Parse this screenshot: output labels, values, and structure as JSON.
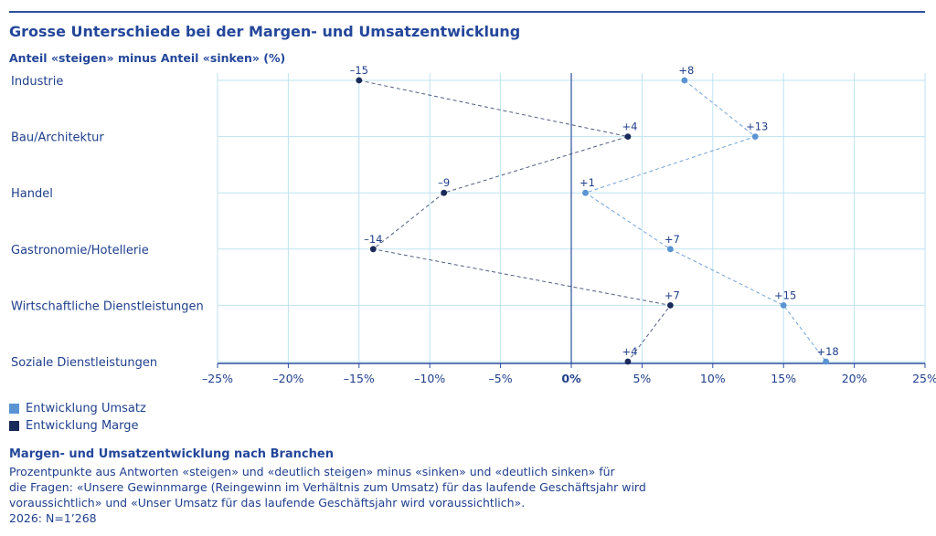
{
  "header": {
    "title": "Grosse Unterschiede bei der Margen- und Umsatzentwicklung",
    "subtitle": "Anteil «steigen» minus Anteil «sinken» (%)"
  },
  "legend": {
    "umsatz": "Entwicklung Umsatz",
    "marge": "Entwicklung Marge"
  },
  "footnote": {
    "title": "Margen- und Umsatzentwicklung nach Branchen",
    "lines": [
      "Prozentpunkte aus Antworten «steigen» und «deutlich steigen» minus «sinken» und «deutlich sinken» für",
      "die Fragen: «Unsere Gewinnmarge (Reingewinn im Verhältnis zum Umsatz) für das laufende Geschäftsjahr wird",
      "voraussichtlich» und «Unser Umsatz für das laufende Geschäftsjahr wird voraussichtlich».",
      "2026: N=1’268"
    ]
  },
  "colors": {
    "umsatz": "#5b94d3",
    "marge": "#1a2a5a",
    "grid": "#bfe3f2",
    "axis": "#2d4f9e"
  },
  "chart_data": {
    "type": "line",
    "orientation": "horizontal",
    "categories": [
      "Industrie",
      "Bau/Architektur",
      "Handel",
      "Gastronomie/Hotellerie",
      "Wirtschaftliche Dienstleistungen",
      "Soziale Dienstleistungen"
    ],
    "series": [
      {
        "name": "Entwicklung Umsatz",
        "values": [
          8,
          13,
          1,
          7,
          15,
          18
        ],
        "labels": [
          "+8",
          "+13",
          "+1",
          "+7",
          "+15",
          "+18"
        ]
      },
      {
        "name": "Entwicklung Marge",
        "values": [
          -15,
          4,
          -9,
          -14,
          7,
          4
        ],
        "labels": [
          "–15",
          "+4",
          "–9",
          "–14",
          "+7",
          "+4"
        ]
      }
    ],
    "xlim": [
      -25,
      25
    ],
    "xticks": [
      -25,
      -20,
      -15,
      -10,
      -5,
      0,
      5,
      10,
      15,
      20,
      25
    ],
    "xtick_labels": [
      "–25%",
      "–20%",
      "–15%",
      "–10%",
      "–5%",
      "0%",
      "5%",
      "10%",
      "15%",
      "20%",
      "25%"
    ],
    "grid": true,
    "legend_position": "bottom-left"
  }
}
